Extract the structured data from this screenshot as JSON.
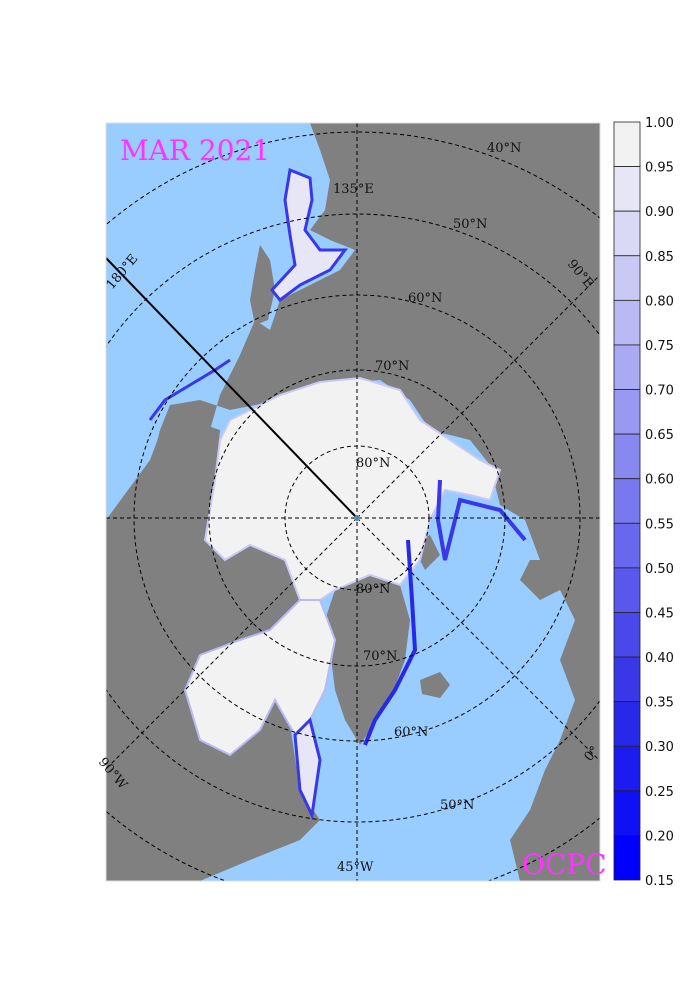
{
  "map": {
    "title": "MAR 2021",
    "credit": "OCPC",
    "projection": "north-polar-stereographic",
    "colors": {
      "ocean": "#99ccff",
      "land": "#808080",
      "ice_full": "#f2f2f2"
    },
    "latitude_labels": [
      "80°N",
      "70°N",
      "60°N",
      "50°N",
      "40°N",
      "80°N",
      "70°N",
      "60°N",
      "50°N"
    ],
    "longitude_labels": [
      "135°E",
      "180°E",
      "90°E",
      "90°W",
      "0°",
      "45°W"
    ]
  },
  "colorbar": {
    "levels": [
      "1.00",
      "0.95",
      "0.90",
      "0.85",
      "0.80",
      "0.75",
      "0.70",
      "0.65",
      "0.60",
      "0.55",
      "0.50",
      "0.45",
      "0.40",
      "0.35",
      "0.30",
      "0.25",
      "0.20",
      "0.15"
    ],
    "colors": [
      "#f2f2f2",
      "#e6e6f6",
      "#d9d9f6",
      "#c9c9f6",
      "#b9b9f5",
      "#a9a9f4",
      "#9999f2",
      "#8888f1",
      "#7878ef",
      "#6868ee",
      "#5858ec",
      "#4848eb",
      "#3838e9",
      "#2828e8",
      "#1c1cf0",
      "#1010f5",
      "#0000ff"
    ]
  }
}
